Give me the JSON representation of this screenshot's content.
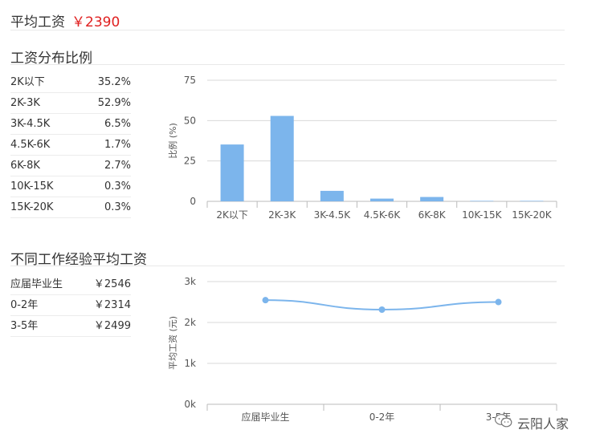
{
  "avg_salary": {
    "label": "平均工资",
    "value": "￥2390"
  },
  "dist_section": {
    "title": "工资分布比例",
    "rows": [
      {
        "range": "2K以下",
        "pct": "35.2%"
      },
      {
        "range": "2K-3K",
        "pct": "52.9%"
      },
      {
        "range": "3K-4.5K",
        "pct": "6.5%"
      },
      {
        "range": "4.5K-6K",
        "pct": "1.7%"
      },
      {
        "range": "6K-8K",
        "pct": "2.7%"
      },
      {
        "range": "10K-15K",
        "pct": "0.3%"
      },
      {
        "range": "15K-20K",
        "pct": "0.3%"
      }
    ]
  },
  "exp_section": {
    "title": "不同工作经验平均工资",
    "rows": [
      {
        "exp": "应届毕业生",
        "salary": "￥2546"
      },
      {
        "exp": "0-2年",
        "salary": "￥2314"
      },
      {
        "exp": "3-5年",
        "salary": "￥2499"
      }
    ]
  },
  "watermark": {
    "text": "云阳人家"
  },
  "colors": {
    "bar": "#7cb5ec",
    "accent_red": "#e02020",
    "grid": "#d8d8d8",
    "axis_text": "#555555"
  },
  "chart_data": [
    {
      "type": "bar",
      "categories": [
        "2K以下",
        "2K-3K",
        "3K-4.5K",
        "4.5K-6K",
        "6K-8K",
        "10K-15K",
        "15K-20K"
      ],
      "values": [
        35.2,
        52.9,
        6.5,
        1.7,
        2.7,
        0.3,
        0.3
      ],
      "ylabel": "比例 (%)",
      "ylim": [
        0,
        75
      ],
      "yticks": [
        0,
        25,
        50,
        75
      ],
      "grid": true
    },
    {
      "type": "line",
      "categories": [
        "应届毕业生",
        "0-2年",
        "3-5年"
      ],
      "values": [
        2546,
        2314,
        2499
      ],
      "ylabel": "平均工资 (元)",
      "ylim": [
        0,
        3000
      ],
      "yticks": [
        0,
        1000,
        2000,
        3000
      ],
      "ytick_labels": [
        "0k",
        "1k",
        "2k",
        "3k"
      ],
      "grid": true
    }
  ]
}
